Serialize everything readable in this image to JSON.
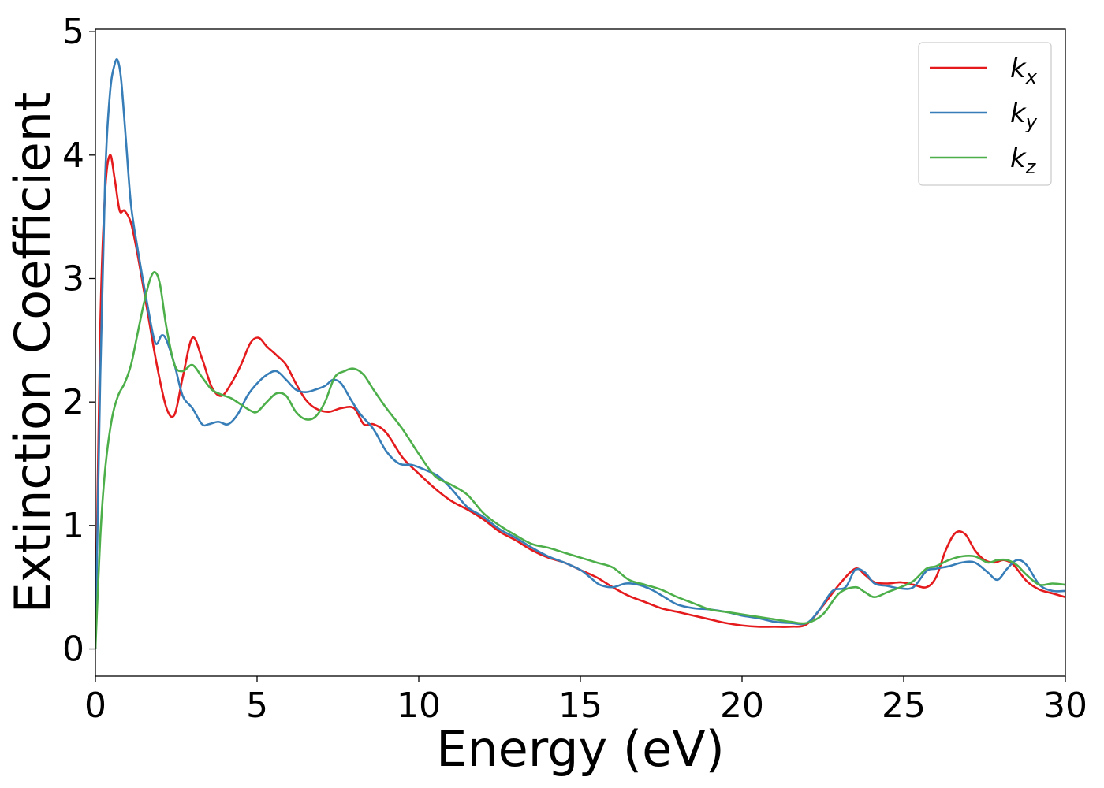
{
  "chart_data": {
    "type": "line",
    "title": "",
    "xlabel": "Energy (eV)",
    "ylabel": "Extinction Coefficient",
    "xlim": [
      0,
      30
    ],
    "ylim": [
      -0.22,
      5.02
    ],
    "xticks": [
      0,
      5,
      10,
      15,
      20,
      25,
      30
    ],
    "yticks": [
      0,
      1,
      2,
      3,
      4,
      5
    ],
    "grid": false,
    "legend_position": "top-right",
    "series": [
      {
        "name": "k",
        "subscript": "x",
        "color": "#e41a1c",
        "x": [
          0,
          0.15,
          0.3,
          0.45,
          0.6,
          0.75,
          0.9,
          1.1,
          1.3,
          1.6,
          1.9,
          2.2,
          2.45,
          2.7,
          3.0,
          3.3,
          3.6,
          3.9,
          4.2,
          4.5,
          4.8,
          5.05,
          5.3,
          5.6,
          5.9,
          6.2,
          6.5,
          6.8,
          7.2,
          7.6,
          8.0,
          8.3,
          8.6,
          9.0,
          9.5,
          10.0,
          10.5,
          11.0,
          11.5,
          12.0,
          12.5,
          13.0,
          13.5,
          14.0,
          14.5,
          15.0,
          15.5,
          16.0,
          16.5,
          17.0,
          17.5,
          18.0,
          18.5,
          19.0,
          19.5,
          20.0,
          20.5,
          21.0,
          21.5,
          22.0,
          22.5,
          23.0,
          23.5,
          23.8,
          24.1,
          24.5,
          24.9,
          25.3,
          25.7,
          26.0,
          26.3,
          26.6,
          26.9,
          27.2,
          27.5,
          27.8,
          28.1,
          28.4,
          28.8,
          29.2,
          29.6,
          30.0
        ],
        "y": [
          0.0,
          2.6,
          3.7,
          4.0,
          3.8,
          3.55,
          3.55,
          3.45,
          3.2,
          2.75,
          2.3,
          1.95,
          1.9,
          2.2,
          2.52,
          2.35,
          2.12,
          2.05,
          2.15,
          2.3,
          2.48,
          2.52,
          2.45,
          2.38,
          2.3,
          2.15,
          2.02,
          1.95,
          1.92,
          1.95,
          1.95,
          1.82,
          1.82,
          1.75,
          1.55,
          1.42,
          1.3,
          1.2,
          1.13,
          1.05,
          0.95,
          0.88,
          0.8,
          0.74,
          0.7,
          0.64,
          0.58,
          0.5,
          0.43,
          0.38,
          0.33,
          0.3,
          0.27,
          0.24,
          0.21,
          0.19,
          0.18,
          0.18,
          0.18,
          0.2,
          0.35,
          0.52,
          0.65,
          0.6,
          0.54,
          0.53,
          0.54,
          0.52,
          0.5,
          0.58,
          0.8,
          0.94,
          0.93,
          0.8,
          0.72,
          0.7,
          0.72,
          0.68,
          0.55,
          0.48,
          0.45,
          0.42
        ]
      },
      {
        "name": "k",
        "subscript": "y",
        "color": "#377eb8",
        "x": [
          0,
          0.15,
          0.3,
          0.45,
          0.6,
          0.7,
          0.8,
          0.95,
          1.1,
          1.3,
          1.6,
          1.85,
          2.05,
          2.2,
          2.45,
          2.7,
          3.0,
          3.3,
          3.5,
          3.8,
          4.1,
          4.4,
          4.7,
          5.0,
          5.3,
          5.6,
          5.9,
          6.2,
          6.5,
          6.8,
          7.1,
          7.35,
          7.6,
          7.9,
          8.2,
          8.6,
          9.0,
          9.4,
          9.8,
          10.2,
          10.6,
          11.0,
          11.5,
          12.0,
          12.5,
          13.0,
          13.5,
          14.0,
          14.5,
          15.0,
          15.3,
          15.6,
          16.0,
          16.4,
          16.8,
          17.2,
          17.6,
          18.0,
          18.5,
          19.0,
          19.5,
          20.0,
          20.5,
          21.0,
          21.5,
          22.0,
          22.4,
          22.8,
          23.2,
          23.5,
          23.8,
          24.1,
          24.5,
          24.9,
          25.3,
          25.7,
          26.0,
          26.4,
          26.8,
          27.2,
          27.6,
          27.9,
          28.2,
          28.5,
          28.8,
          29.2,
          29.6,
          30.0
        ],
        "y": [
          0.0,
          2.2,
          3.8,
          4.5,
          4.74,
          4.76,
          4.6,
          4.1,
          3.6,
          3.25,
          2.8,
          2.48,
          2.54,
          2.5,
          2.3,
          2.05,
          1.95,
          1.82,
          1.82,
          1.84,
          1.82,
          1.9,
          2.05,
          2.15,
          2.22,
          2.25,
          2.18,
          2.1,
          2.08,
          2.1,
          2.13,
          2.18,
          2.15,
          2.02,
          1.9,
          1.78,
          1.6,
          1.5,
          1.49,
          1.45,
          1.4,
          1.3,
          1.15,
          1.07,
          0.97,
          0.9,
          0.82,
          0.75,
          0.7,
          0.64,
          0.58,
          0.52,
          0.5,
          0.53,
          0.52,
          0.48,
          0.42,
          0.36,
          0.33,
          0.32,
          0.3,
          0.27,
          0.25,
          0.22,
          0.21,
          0.21,
          0.32,
          0.47,
          0.5,
          0.64,
          0.62,
          0.53,
          0.51,
          0.49,
          0.5,
          0.63,
          0.65,
          0.67,
          0.7,
          0.7,
          0.62,
          0.56,
          0.65,
          0.72,
          0.68,
          0.52,
          0.47,
          0.47
        ]
      },
      {
        "name": "k",
        "subscript": "z",
        "color": "#4daf4a",
        "x": [
          0,
          0.15,
          0.3,
          0.5,
          0.7,
          0.9,
          1.1,
          1.3,
          1.5,
          1.7,
          1.85,
          2.0,
          2.2,
          2.45,
          2.7,
          3.0,
          3.3,
          3.6,
          3.9,
          4.2,
          4.5,
          4.8,
          5.0,
          5.3,
          5.6,
          5.9,
          6.2,
          6.5,
          6.8,
          7.1,
          7.4,
          7.7,
          8.0,
          8.3,
          8.6,
          9.0,
          9.5,
          10.0,
          10.5,
          11.0,
          11.5,
          12.0,
          12.5,
          13.0,
          13.5,
          14.0,
          14.5,
          15.0,
          15.5,
          16.0,
          16.5,
          17.0,
          17.5,
          18.0,
          18.5,
          19.0,
          19.5,
          20.0,
          20.5,
          21.0,
          21.5,
          22.0,
          22.5,
          23.0,
          23.5,
          23.8,
          24.1,
          24.5,
          24.9,
          25.3,
          25.7,
          26.0,
          26.4,
          26.8,
          27.2,
          27.6,
          27.9,
          28.2,
          28.5,
          28.8,
          29.2,
          29.6,
          30.0
        ],
        "y": [
          0.0,
          0.9,
          1.45,
          1.85,
          2.05,
          2.15,
          2.3,
          2.55,
          2.8,
          3.0,
          3.05,
          2.95,
          2.6,
          2.3,
          2.25,
          2.3,
          2.2,
          2.1,
          2.06,
          2.03,
          1.98,
          1.93,
          1.92,
          2.0,
          2.07,
          2.05,
          1.92,
          1.86,
          1.88,
          2.0,
          2.2,
          2.25,
          2.27,
          2.22,
          2.1,
          1.95,
          1.78,
          1.58,
          1.4,
          1.33,
          1.25,
          1.1,
          1.0,
          0.92,
          0.85,
          0.82,
          0.78,
          0.74,
          0.7,
          0.66,
          0.56,
          0.52,
          0.48,
          0.42,
          0.37,
          0.32,
          0.3,
          0.28,
          0.26,
          0.24,
          0.22,
          0.21,
          0.28,
          0.45,
          0.5,
          0.46,
          0.42,
          0.46,
          0.5,
          0.55,
          0.65,
          0.67,
          0.72,
          0.75,
          0.75,
          0.7,
          0.72,
          0.72,
          0.68,
          0.6,
          0.52,
          0.53,
          0.52
        ]
      }
    ]
  }
}
